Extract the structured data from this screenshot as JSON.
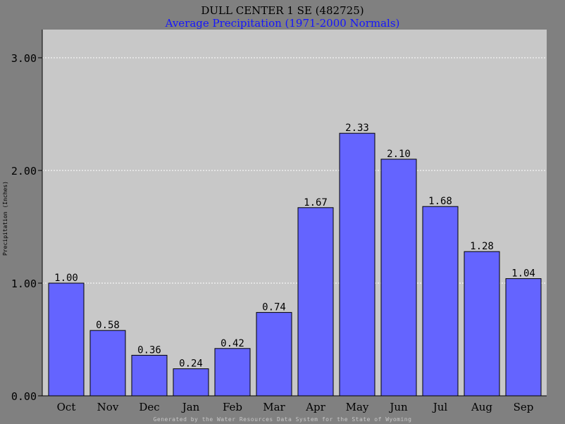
{
  "chart_data": {
    "type": "bar",
    "title": "DULL CENTER 1 SE (482725)",
    "subtitle": "Average Precipitation (1971-2000 Normals)",
    "xlabel": "",
    "ylabel": "Precipitation (Inches)",
    "categories": [
      "Oct",
      "Nov",
      "Dec",
      "Jan",
      "Feb",
      "Mar",
      "Apr",
      "May",
      "Jun",
      "Jul",
      "Aug",
      "Sep"
    ],
    "values": [
      1.0,
      0.58,
      0.36,
      0.24,
      0.42,
      0.74,
      1.67,
      2.33,
      2.1,
      1.68,
      1.28,
      1.04
    ],
    "value_labels": [
      "1.00",
      "0.58",
      "0.36",
      "0.24",
      "0.42",
      "0.74",
      "1.67",
      "2.33",
      "2.10",
      "1.68",
      "1.28",
      "1.04"
    ],
    "ylim": [
      0,
      3.0
    ],
    "yticks": [
      0,
      1,
      2,
      3
    ],
    "ytick_labels": [
      "0.00",
      "1.00",
      "2.00",
      "3.00"
    ],
    "grid": true,
    "colors": {
      "bar": "#6464ff",
      "plot_bg": "#c8c8c8",
      "page_bg": "#808080",
      "subtitle": "#1515ff",
      "grid": "#ffffff"
    }
  },
  "footer": "Generated by the Water Resources Data System for the State of Wyoming"
}
